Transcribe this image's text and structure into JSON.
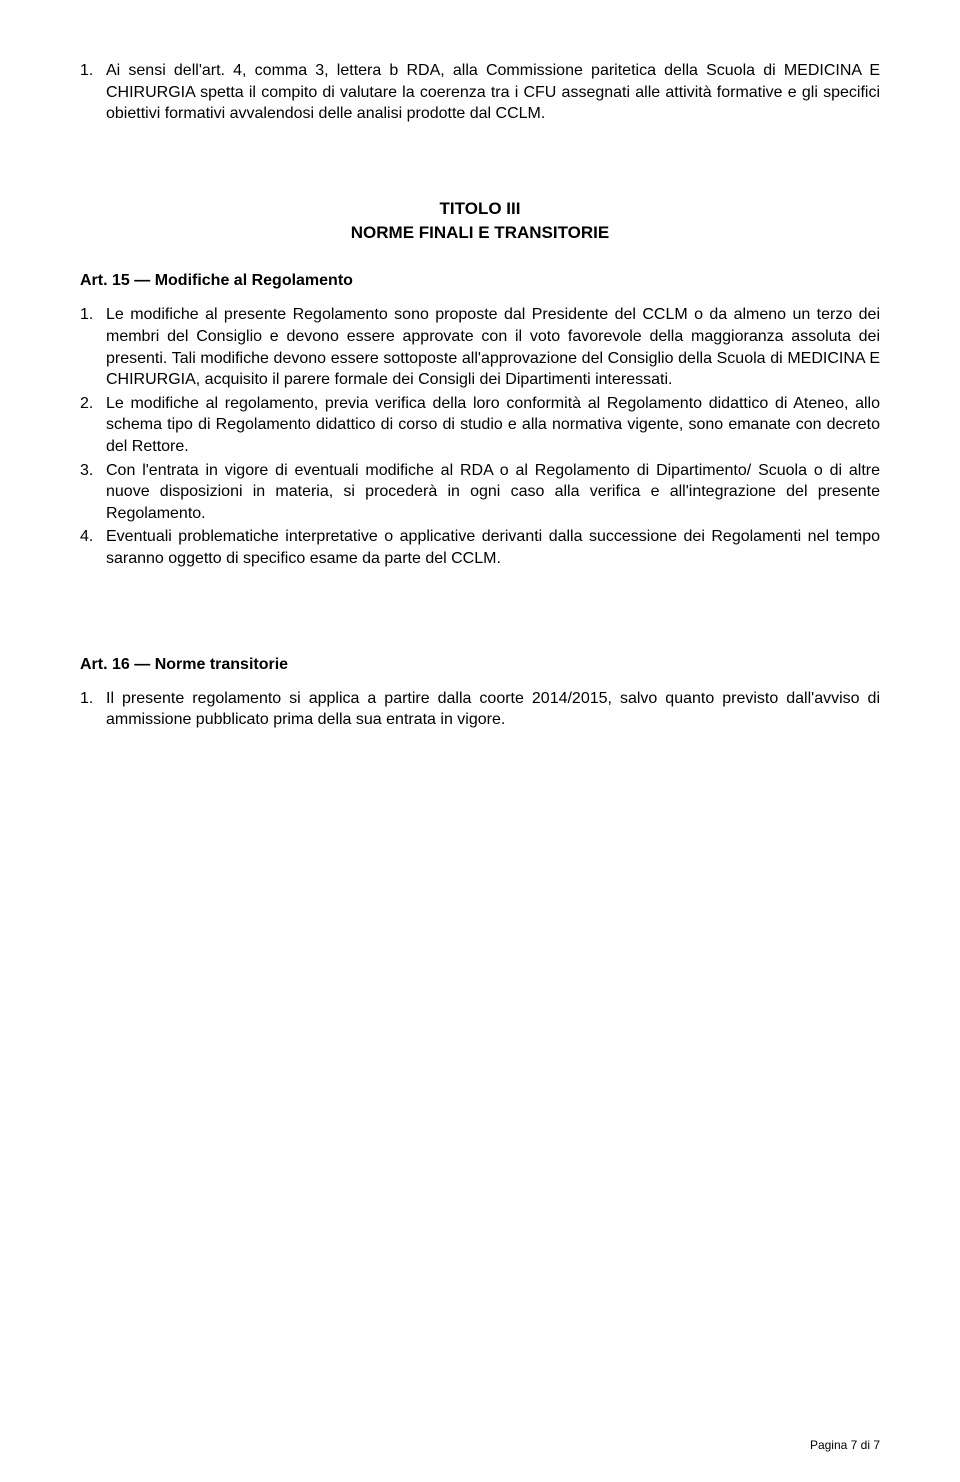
{
  "list1": {
    "items": [
      {
        "num": "1.",
        "text": "Ai sensi dell'art. 4, comma 3, lettera b RDA, alla Commissione paritetica della Scuola di MEDICINA E CHIRURGIA spetta il compito di valutare la coerenza tra i CFU assegnati alle attività formative e gli specifici obiettivi formativi avvalendosi delle analisi prodotte dal CCLM."
      }
    ]
  },
  "title3": {
    "line1": "TITOLO III",
    "line2": "NORME FINALI E TRANSITORIE"
  },
  "art15": {
    "heading": "Art. 15 — Modifiche al Regolamento",
    "items": [
      {
        "num": "1.",
        "text": "Le modifiche al presente Regolamento sono proposte dal Presidente del CCLM o da almeno un terzo dei membri del Consiglio e devono essere approvate con il voto favorevole della maggioranza assoluta dei presenti. Tali modifiche devono essere sottoposte all'approvazione del Consiglio della Scuola di MEDICINA E CHIRURGIA, acquisito il parere formale dei Consigli dei Dipartimenti interessati."
      },
      {
        "num": "2.",
        "text": "Le modifiche al regolamento, previa verifica della loro conformità al Regolamento didattico di Ateneo, allo schema tipo di Regolamento didattico di corso di studio e alla normativa vigente, sono emanate con decreto del Rettore."
      },
      {
        "num": "3.",
        "text": "Con l'entrata in vigore di eventuali modifiche al RDA o al Regolamento di Dipartimento/ Scuola o di altre nuove disposizioni in materia, si procederà in ogni caso alla verifica e all'integrazione del presente Regolamento."
      },
      {
        "num": "4.",
        "text": "Eventuali problematiche interpretative o applicative derivanti dalla successione dei Regolamenti nel tempo saranno oggetto di specifico esame da parte del CCLM."
      }
    ]
  },
  "art16": {
    "heading": "Art. 16 — Norme transitorie",
    "items": [
      {
        "num": "1.",
        "text": "Il presente regolamento si applica a partire dalla coorte 2014/2015, salvo quanto previsto dall'avviso di ammissione pubblicato prima della sua entrata in vigore."
      }
    ]
  },
  "footer": "Pagina 7 di 7"
}
